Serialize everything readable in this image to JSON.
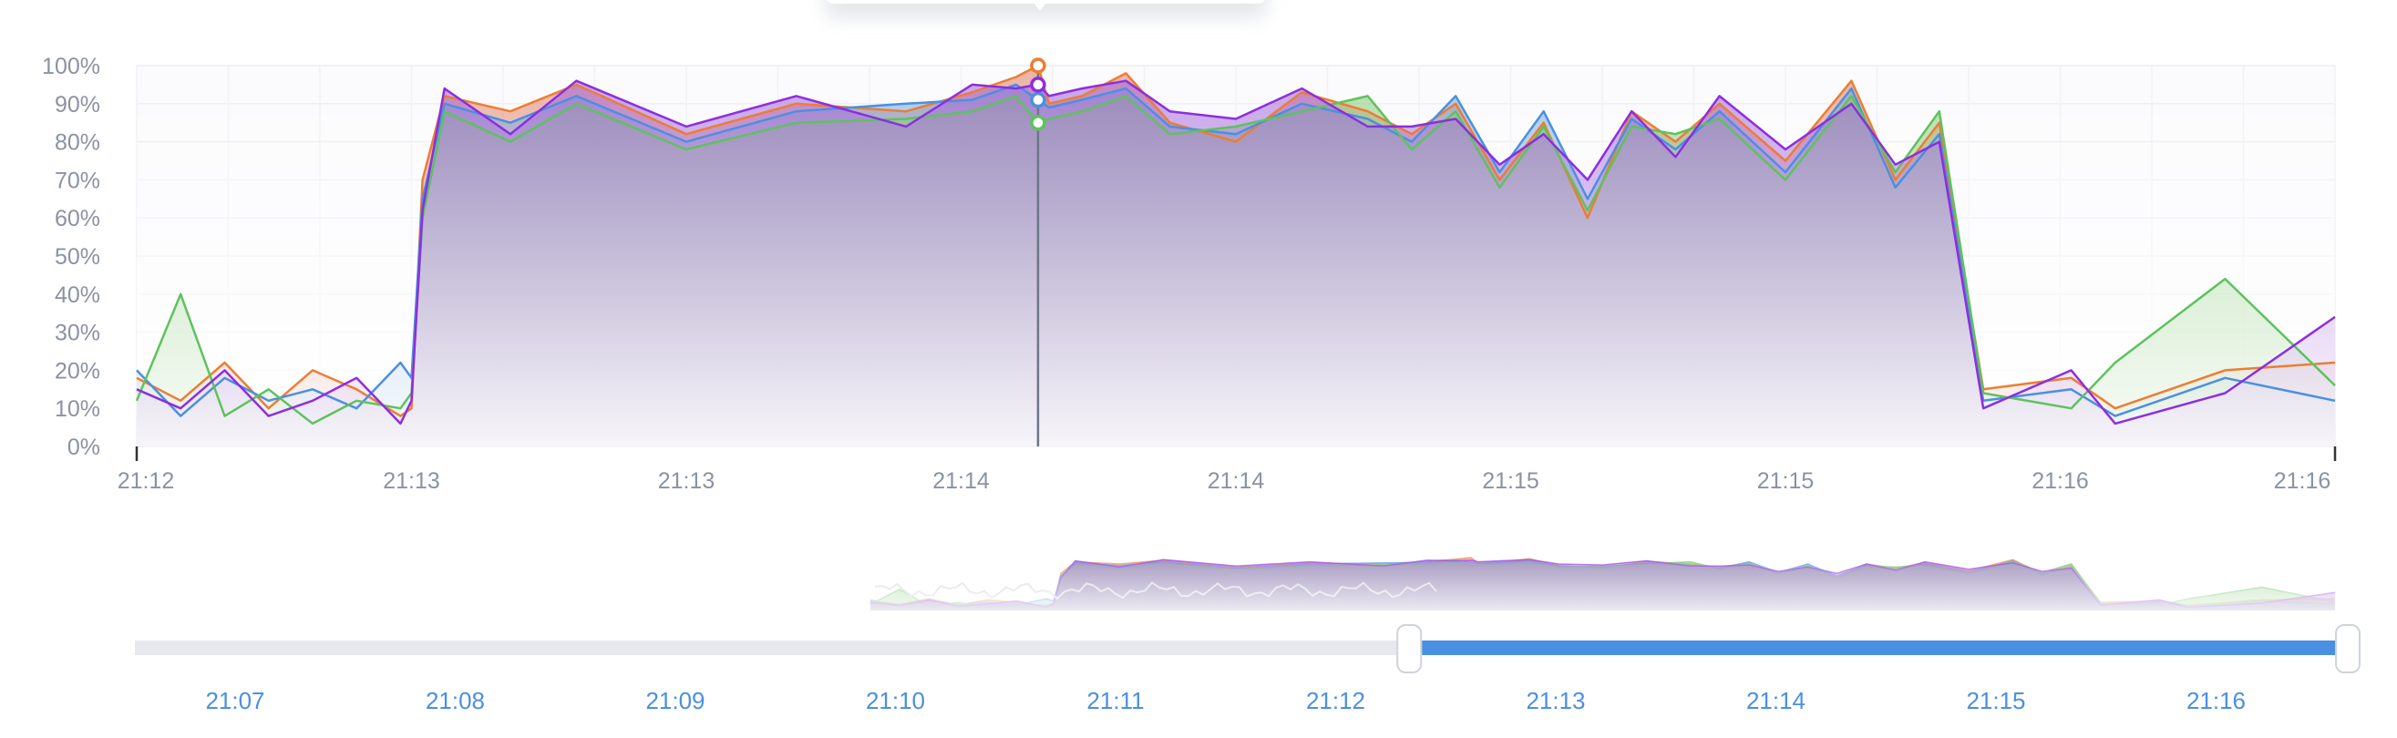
{
  "chart_data": {
    "type": "area",
    "title": "",
    "xlabel": "",
    "ylabel": "",
    "ylim": [
      0,
      100
    ],
    "y_unit": "%",
    "y_ticks": [
      "0%",
      "10%",
      "20%",
      "30%",
      "40%",
      "50%",
      "60%",
      "70%",
      "80%",
      "90%",
      "100%"
    ],
    "x_ticks": [
      "21:12",
      "21:13",
      "21:13",
      "21:14",
      "21:14",
      "21:15",
      "21:15",
      "21:16",
      "21:16"
    ],
    "grid": true,
    "legend": "none",
    "tooltip_open": true,
    "series": [
      {
        "color": "#ed7d31",
        "fill_color": "#e07a5f",
        "x_pos": [
          0,
          0.02,
          0.04,
          0.06,
          0.08,
          0.1,
          0.12,
          0.125,
          0.13,
          0.14,
          0.17,
          0.2,
          0.25,
          0.3,
          0.35,
          0.38,
          0.4,
          0.41,
          0.415,
          0.43,
          0.45,
          0.47,
          0.5,
          0.53,
          0.56,
          0.58,
          0.6,
          0.62,
          0.64,
          0.66,
          0.68,
          0.7,
          0.72,
          0.75,
          0.78,
          0.8,
          0.82,
          0.84,
          0.88,
          0.9,
          0.95,
          1.0
        ],
        "values": [
          18,
          12,
          22,
          10,
          20,
          15,
          8,
          10,
          70,
          92,
          88,
          95,
          82,
          90,
          88,
          93,
          97,
          100,
          90,
          92,
          98,
          85,
          80,
          93,
          88,
          82,
          90,
          70,
          85,
          60,
          88,
          80,
          90,
          75,
          96,
          70,
          85,
          15,
          18,
          10,
          20,
          22
        ]
      },
      {
        "color": "#4a90e2",
        "fill_color": "#6a9fd8",
        "x_pos": [
          0,
          0.02,
          0.04,
          0.06,
          0.08,
          0.1,
          0.12,
          0.125,
          0.13,
          0.14,
          0.17,
          0.2,
          0.25,
          0.3,
          0.35,
          0.38,
          0.4,
          0.41,
          0.415,
          0.43,
          0.45,
          0.47,
          0.5,
          0.53,
          0.56,
          0.58,
          0.6,
          0.62,
          0.64,
          0.66,
          0.68,
          0.7,
          0.72,
          0.75,
          0.78,
          0.8,
          0.82,
          0.84,
          0.88,
          0.9,
          0.95,
          1.0
        ],
        "values": [
          20,
          8,
          18,
          12,
          15,
          10,
          22,
          18,
          65,
          90,
          85,
          92,
          80,
          88,
          90,
          91,
          95,
          91,
          89,
          91,
          94,
          84,
          82,
          90,
          86,
          80,
          92,
          72,
          88,
          65,
          86,
          78,
          88,
          72,
          94,
          68,
          82,
          12,
          15,
          8,
          18,
          12
        ]
      },
      {
        "color": "#5ec25e",
        "fill_color": "#7cc46a",
        "x_pos": [
          0,
          0.02,
          0.04,
          0.06,
          0.08,
          0.1,
          0.12,
          0.125,
          0.13,
          0.14,
          0.17,
          0.2,
          0.25,
          0.3,
          0.35,
          0.38,
          0.4,
          0.41,
          0.415,
          0.43,
          0.45,
          0.47,
          0.5,
          0.53,
          0.56,
          0.58,
          0.6,
          0.62,
          0.64,
          0.66,
          0.68,
          0.7,
          0.72,
          0.75,
          0.78,
          0.8,
          0.82,
          0.84,
          0.88,
          0.9,
          0.95,
          1.0
        ],
        "values": [
          12,
          40,
          8,
          15,
          6,
          12,
          10,
          14,
          60,
          88,
          80,
          90,
          78,
          85,
          86,
          88,
          92,
          85,
          86,
          88,
          92,
          82,
          84,
          88,
          92,
          78,
          88,
          68,
          84,
          62,
          84,
          82,
          86,
          70,
          92,
          72,
          88,
          14,
          10,
          22,
          44,
          16
        ]
      },
      {
        "color": "#8e2de2",
        "fill_color": "#9b59d8",
        "x_pos": [
          0,
          0.02,
          0.04,
          0.06,
          0.08,
          0.1,
          0.12,
          0.125,
          0.13,
          0.14,
          0.17,
          0.2,
          0.25,
          0.3,
          0.35,
          0.38,
          0.4,
          0.41,
          0.415,
          0.43,
          0.45,
          0.47,
          0.5,
          0.53,
          0.56,
          0.58,
          0.6,
          0.62,
          0.64,
          0.66,
          0.68,
          0.7,
          0.72,
          0.75,
          0.78,
          0.8,
          0.82,
          0.84,
          0.88,
          0.9,
          0.95,
          1.0
        ],
        "values": [
          15,
          10,
          20,
          8,
          12,
          18,
          6,
          12,
          62,
          94,
          82,
          96,
          84,
          92,
          84,
          95,
          94,
          95,
          92,
          94,
          96,
          88,
          86,
          94,
          84,
          84,
          86,
          74,
          82,
          70,
          88,
          76,
          92,
          78,
          90,
          74,
          80,
          10,
          20,
          6,
          14,
          34
        ]
      }
    ],
    "hover_markers": [
      {
        "series": 0,
        "value": 100
      },
      {
        "series": 1,
        "value": 91
      },
      {
        "series": 3,
        "value": 95
      },
      {
        "series": 2,
        "value": 85
      }
    ],
    "navigator": {
      "ticks": [
        "21:07",
        "21:08",
        "21:09",
        "21:10",
        "21:11",
        "21:12",
        "21:13",
        "21:14",
        "21:15",
        "21:16"
      ],
      "selected_from": 0.585,
      "selected_to": 1.0
    }
  }
}
